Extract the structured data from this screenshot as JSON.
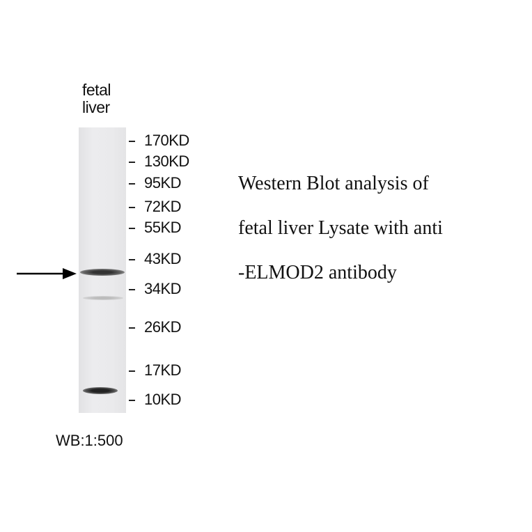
{
  "lane_label": [
    "fetal",
    "liver"
  ],
  "markers": [
    {
      "label": "170KD",
      "kd": 170
    },
    {
      "label": "130KD",
      "kd": 130
    },
    {
      "label": "95KD",
      "kd": 95
    },
    {
      "label": "72KD",
      "kd": 72
    },
    {
      "label": "55KD",
      "kd": 55
    },
    {
      "label": "43KD",
      "kd": 43
    },
    {
      "label": "34KD",
      "kd": 34
    },
    {
      "label": "26KD",
      "kd": 26
    },
    {
      "label": "17KD",
      "kd": 17
    },
    {
      "label": "10KD",
      "kd": 10
    }
  ],
  "bands": [
    {
      "name": "target-band",
      "intensity": "strong",
      "between": "43KD-34KD"
    },
    {
      "name": "faint-band",
      "intensity": "faint",
      "between": "34KD-26KD"
    },
    {
      "name": "low-band",
      "intensity": "strong",
      "between": "17KD-10KD"
    }
  ],
  "caption": [
    "Western Blot analysis of",
    "fetal liver Lysate with anti",
    "-ELMOD2 antibody"
  ],
  "dilution": "WB:1:500"
}
